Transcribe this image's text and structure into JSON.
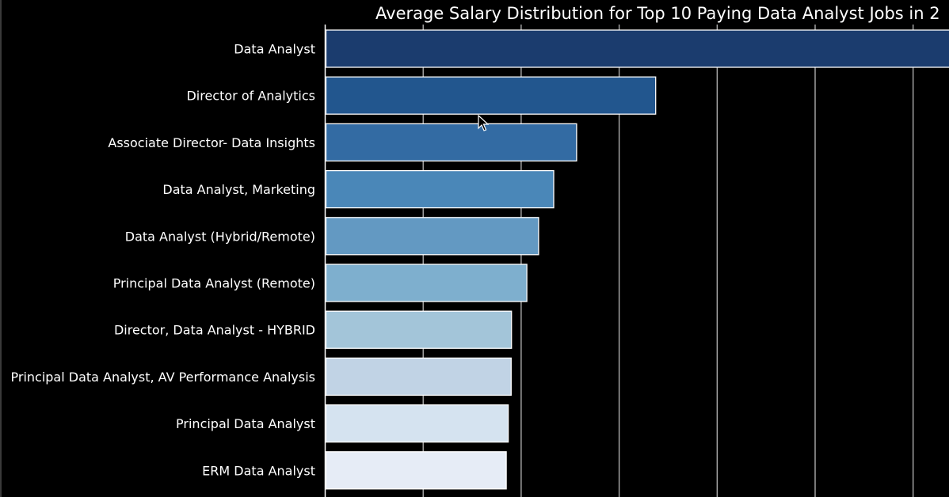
{
  "chart_data": {
    "type": "bar",
    "orientation": "horizontal",
    "title": "Average Salary Distribution for Top 10 Paying Data Analyst Jobs in 2",
    "xlabel": "",
    "ylabel": "",
    "categories": [
      "Data Analyst",
      "Director of Analytics",
      "Associate Director- Data Insights",
      "Data Analyst, Marketing",
      "Data Analyst (Hybrid/Remote)",
      "Principal Data Analyst (Remote)",
      "Director, Data Analyst - HYBRID",
      "Principal Data Analyst, AV Performance Analysis",
      "Principal Data Analyst",
      "ERM Data Analyst"
    ],
    "values": [
      650000,
      336500,
      255829.5,
      232423,
      217000,
      205000,
      189309,
      189000,
      186000,
      184000
    ],
    "colors": [
      "#1b3c6e",
      "#22568e",
      "#336ba3",
      "#4a87b8",
      "#6399c2",
      "#7eafce",
      "#a3c5d9",
      "#c1d3e5",
      "#d5e3f0",
      "#e6ecf6"
    ],
    "grid": true,
    "background": "#000000",
    "text_color": "#ffffff",
    "grid_color": "#b8b8b8",
    "bar_edge_color": "#ffffff"
  }
}
